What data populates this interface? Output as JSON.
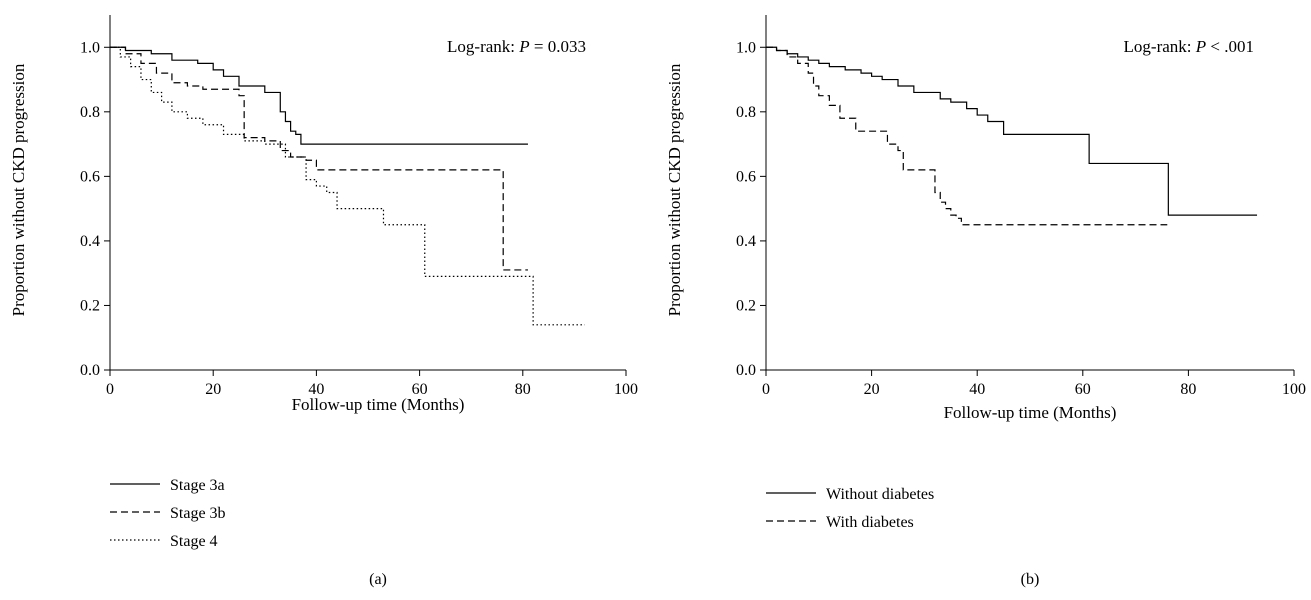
{
  "chart_data": [
    {
      "type": "line",
      "step": true,
      "panel_label": "(a)",
      "xlabel": "Follow-up time (Months)",
      "ylabel": "Proportion without CKD progression",
      "xlim": [
        0,
        100
      ],
      "ylim": [
        0,
        1.1
      ],
      "xticks": [
        0,
        20,
        40,
        60,
        80,
        100
      ],
      "yticks": [
        0.0,
        0.2,
        0.4,
        0.6,
        0.8,
        1.0
      ],
      "xtick_labels": [
        "0",
        "20",
        "40",
        "60",
        "80",
        "100"
      ],
      "ytick_labels": [
        "0.0",
        "0.2",
        "0.4",
        "0.6",
        "0.8",
        "1.0"
      ],
      "annotation": {
        "prefix": "Log-rank: ",
        "p": "P",
        "suffix": " = 0.033"
      },
      "grid": false,
      "legend_position": "bottom-left",
      "series": [
        {
          "name": "Stage 3a",
          "dash": "solid",
          "x": [
            0,
            3,
            8,
            12,
            17,
            20,
            22,
            25,
            30,
            33,
            34,
            35,
            36,
            37,
            38,
            81
          ],
          "y": [
            1.0,
            0.99,
            0.98,
            0.96,
            0.95,
            0.93,
            0.91,
            0.88,
            0.86,
            0.8,
            0.77,
            0.74,
            0.73,
            0.7,
            0.7,
            0.7
          ]
        },
        {
          "name": "Stage 3b",
          "dash": "dashed",
          "x": [
            0,
            3,
            6,
            9,
            12,
            15,
            18,
            20,
            25,
            26,
            30,
            33,
            35,
            38,
            40,
            76,
            76.2,
            81
          ],
          "y": [
            1.0,
            0.98,
            0.95,
            0.92,
            0.89,
            0.88,
            0.87,
            0.87,
            0.85,
            0.72,
            0.71,
            0.68,
            0.66,
            0.65,
            0.62,
            0.62,
            0.31,
            0.31
          ]
        },
        {
          "name": "Stage 4",
          "dash": "dotted",
          "x": [
            0,
            2,
            4,
            6,
            8,
            10,
            12,
            15,
            18,
            22,
            26,
            30,
            34,
            38,
            40,
            42,
            44,
            52,
            53,
            61,
            81,
            82,
            92
          ],
          "y": [
            1.0,
            0.97,
            0.94,
            0.9,
            0.86,
            0.83,
            0.8,
            0.78,
            0.76,
            0.73,
            0.71,
            0.7,
            0.66,
            0.59,
            0.57,
            0.55,
            0.5,
            0.5,
            0.45,
            0.29,
            0.29,
            0.14,
            0.14
          ]
        }
      ]
    },
    {
      "type": "line",
      "step": true,
      "panel_label": "(b)",
      "xlabel": "Follow-up time (Months)",
      "ylabel": "Proportion without CKD progression",
      "xlim": [
        0,
        100
      ],
      "ylim": [
        0,
        1.1
      ],
      "xticks": [
        0,
        20,
        40,
        60,
        80,
        100
      ],
      "yticks": [
        0.0,
        0.2,
        0.4,
        0.6,
        0.8,
        1.0
      ],
      "xtick_labels": [
        "0",
        "20",
        "40",
        "60",
        "80",
        "100"
      ],
      "ytick_labels": [
        "0.0",
        "0.2",
        "0.4",
        "0.6",
        "0.8",
        "1.0"
      ],
      "annotation": {
        "prefix": "Log-rank: ",
        "p": "P",
        "suffix": " < .001"
      },
      "grid": false,
      "legend_position": "bottom-left",
      "series": [
        {
          "name": "Without diabetes",
          "dash": "solid",
          "x": [
            0,
            2,
            4,
            6,
            8,
            10,
            12,
            15,
            18,
            20,
            22,
            25,
            28,
            33,
            35,
            38,
            40,
            42,
            45,
            61,
            61.2,
            76,
            76.2,
            93
          ],
          "y": [
            1.0,
            0.99,
            0.98,
            0.97,
            0.96,
            0.95,
            0.94,
            0.93,
            0.92,
            0.91,
            0.9,
            0.88,
            0.86,
            0.84,
            0.83,
            0.81,
            0.79,
            0.77,
            0.73,
            0.73,
            0.64,
            0.64,
            0.48,
            0.48
          ]
        },
        {
          "name": "With diabetes",
          "dash": "dashed",
          "x": [
            0,
            2,
            4,
            6,
            8,
            9,
            10,
            12,
            14,
            17,
            20,
            22,
            23,
            25,
            26,
            31,
            32,
            33,
            34,
            35,
            36,
            37,
            76
          ],
          "y": [
            1.0,
            0.99,
            0.97,
            0.95,
            0.92,
            0.88,
            0.85,
            0.82,
            0.78,
            0.74,
            0.74,
            0.74,
            0.7,
            0.68,
            0.62,
            0.62,
            0.55,
            0.52,
            0.5,
            0.48,
            0.47,
            0.45,
            0.45
          ]
        }
      ]
    }
  ]
}
